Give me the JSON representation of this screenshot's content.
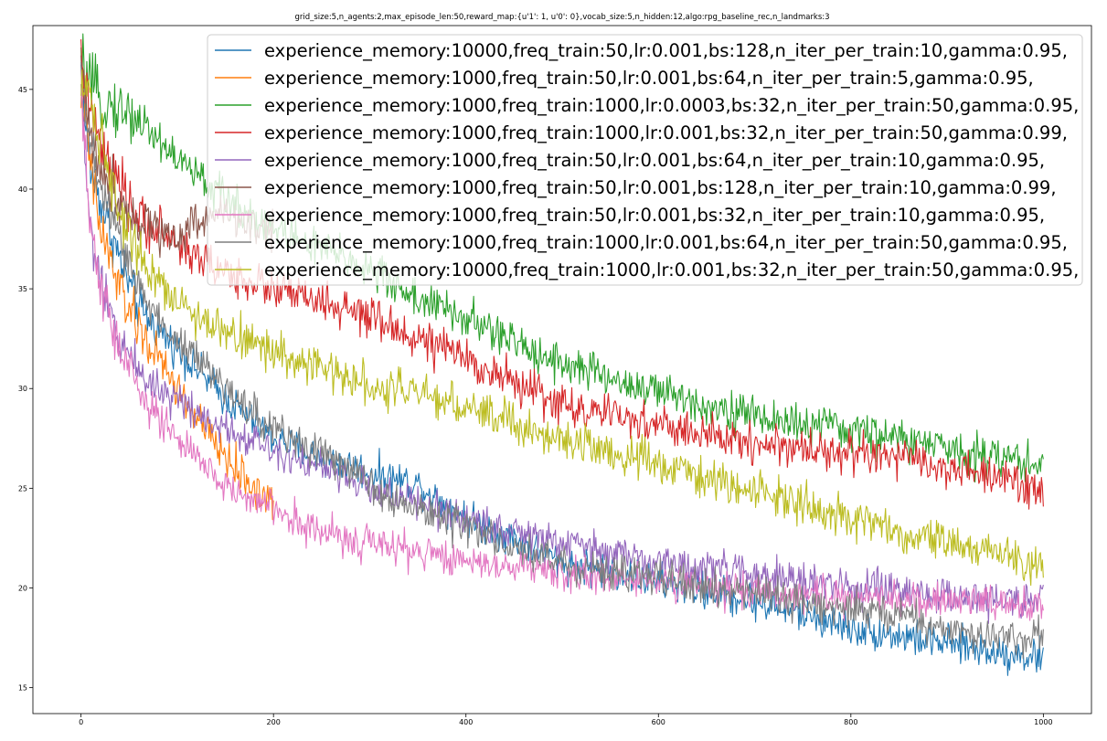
{
  "chart_data": {
    "type": "line",
    "title": "grid_size:5,n_agents:2,max_episode_len:50,reward_map:{u'1': 1, u'0': 0},vocab_size:5,n_hidden:12,algo:rpg_baseline_rec,n_landmarks:3",
    "xlabel": "",
    "ylabel": "",
    "xlim": [
      -50,
      1050
    ],
    "ylim": [
      13.7,
      48.2
    ],
    "xticks": [
      0,
      200,
      400,
      600,
      800,
      1000
    ],
    "yticks": [
      15,
      20,
      25,
      30,
      35,
      40,
      45
    ],
    "grid": false,
    "legend_position": "top-right",
    "series": [
      {
        "name": "experience_memory:10000,freq_train:50,lr:0.001,bs:128,n_iter_per_train:10,gamma:0.95,",
        "color": "#1f77b4",
        "x": [
          0,
          5,
          10,
          20,
          40,
          60,
          80,
          100,
          150,
          200,
          250,
          300,
          350,
          400,
          450,
          500,
          550,
          600,
          650,
          700,
          750,
          800,
          850,
          900,
          950,
          1000
        ],
        "y": [
          46,
          43,
          41,
          39.5,
          36.5,
          34,
          33,
          32,
          29.5,
          27.5,
          26.5,
          25.8,
          25.2,
          23.5,
          22.5,
          21.3,
          20.8,
          20.3,
          19.8,
          19.3,
          18.7,
          18,
          17.6,
          17.2,
          16.8,
          16.5
        ],
        "noise": 0.8
      },
      {
        "name": "experience_memory:1000,freq_train:50,lr:0.001,bs:64,n_iter_per_train:5,gamma:0.95,",
        "color": "#ff7f0e",
        "x": [
          0,
          10,
          20,
          40,
          60,
          80,
          100,
          120,
          140,
          160,
          180,
          200
        ],
        "y": [
          45,
          41,
          38,
          35,
          33,
          31.5,
          30,
          28.5,
          27.2,
          26,
          25,
          24.2
        ],
        "noise": 0.9
      },
      {
        "name": "experience_memory:1000,freq_train:1000,lr:0.0003,bs:32,n_iter_per_train:50,gamma:0.95,",
        "color": "#2ca02c",
        "x": [
          0,
          10,
          20,
          40,
          60,
          80,
          100,
          150,
          200,
          250,
          300,
          350,
          400,
          450,
          500,
          550,
          600,
          650,
          700,
          750,
          800,
          850,
          900,
          950,
          1000
        ],
        "y": [
          46,
          45,
          44.5,
          44,
          43.5,
          42.5,
          41.5,
          39.5,
          38,
          37,
          36,
          34.5,
          33.5,
          32.3,
          31.3,
          30.5,
          29.8,
          29.2,
          28.6,
          28.2,
          27.9,
          27.5,
          27,
          26.6,
          26.2
        ],
        "noise": 0.9
      },
      {
        "name": "experience_memory:1000,freq_train:1000,lr:0.001,bs:32,n_iter_per_train:50,gamma:0.99,",
        "color": "#d62728",
        "x": [
          0,
          10,
          20,
          40,
          60,
          80,
          100,
          150,
          200,
          250,
          300,
          350,
          400,
          450,
          500,
          550,
          600,
          650,
          700,
          750,
          800,
          850,
          900,
          950,
          1000
        ],
        "y": [
          46,
          44,
          42,
          40,
          38.5,
          38,
          37.2,
          35.8,
          35,
          34.3,
          33.5,
          32.5,
          31.5,
          30.3,
          29.2,
          28.6,
          28.2,
          27.6,
          27.3,
          27,
          26.8,
          26.5,
          26,
          25.5,
          25
        ],
        "noise": 0.9
      },
      {
        "name": "experience_memory:1000,freq_train:50,lr:0.001,bs:64,n_iter_per_train:10,gamma:0.95,",
        "color": "#9467bd",
        "x": [
          0,
          5,
          10,
          20,
          40,
          60,
          80,
          100,
          150,
          200,
          250,
          300,
          350,
          400,
          450,
          500,
          550,
          600,
          650,
          700,
          750,
          800,
          850,
          900,
          950,
          1000
        ],
        "y": [
          45,
          41,
          38,
          35,
          32.5,
          31,
          30,
          29.5,
          28,
          27,
          26,
          25,
          24.2,
          23.5,
          22.8,
          22.2,
          21.8,
          21.3,
          21,
          20.7,
          20.3,
          20,
          19.8,
          19.6,
          19.4,
          19.3
        ],
        "noise": 0.8
      },
      {
        "name": "experience_memory:1000,freq_train:50,lr:0.001,bs:128,n_iter_per_train:10,gamma:0.99,",
        "color": "#8c564b",
        "x": [
          0,
          10,
          20,
          40,
          60,
          80,
          100,
          120,
          140,
          160,
          180,
          200
        ],
        "y": [
          46,
          43,
          41,
          39.5,
          38.5,
          38,
          37.5,
          38.5,
          38.8,
          38.6,
          38.2,
          37.8
        ],
        "noise": 0.9
      },
      {
        "name": "experience_memory:1000,freq_train:50,lr:0.001,bs:32,n_iter_per_train:10,gamma:0.95,",
        "color": "#e377c2",
        "x": [
          0,
          5,
          10,
          20,
          40,
          60,
          80,
          100,
          130,
          160,
          200,
          250,
          300,
          350,
          400,
          450,
          500,
          550,
          600,
          650,
          700,
          750,
          800,
          850,
          900,
          950,
          1000
        ],
        "y": [
          45,
          41,
          38,
          35,
          32,
          30,
          28.5,
          27.5,
          26,
          24.8,
          24,
          22.8,
          22.2,
          21.8,
          21.4,
          21.1,
          20.8,
          20.5,
          20.2,
          20,
          19.8,
          19.6,
          19.5,
          19.4,
          19.3,
          19.2,
          19.2
        ],
        "noise": 0.8
      },
      {
        "name": "experience_memory:1000,freq_train:1000,lr:0.001,bs:64,n_iter_per_train:50,gamma:0.95,",
        "color": "#7f7f7f",
        "x": [
          0,
          10,
          20,
          40,
          60,
          80,
          100,
          150,
          200,
          250,
          300,
          350,
          400,
          450,
          500,
          550,
          600,
          650,
          700,
          750,
          800,
          850,
          900,
          950,
          1000
        ],
        "y": [
          45,
          42.5,
          40,
          37.5,
          35,
          33.5,
          32.5,
          30,
          28,
          26.8,
          25.2,
          24,
          23,
          22,
          21.2,
          20.8,
          20.5,
          20,
          19.6,
          19.3,
          19,
          18.5,
          18,
          17.5,
          17.5
        ],
        "noise": 0.8
      },
      {
        "name": "experience_memory:10000,freq_train:1000,lr:0.001,bs:32,n_iter_per_train:50,gamma:0.95,",
        "color": "#bcbd22",
        "x": [
          0,
          10,
          20,
          40,
          60,
          80,
          100,
          150,
          200,
          250,
          300,
          350,
          400,
          450,
          500,
          550,
          600,
          650,
          700,
          750,
          800,
          850,
          900,
          950,
          1000
        ],
        "y": [
          46,
          44.5,
          42.5,
          39,
          37,
          35.5,
          34.3,
          32.8,
          31.8,
          31,
          30.3,
          29.8,
          29,
          28.3,
          27.5,
          26.8,
          26.2,
          25.5,
          24.8,
          24.2,
          23.5,
          22.8,
          22.3,
          21.8,
          21.2
        ],
        "noise": 0.9
      }
    ]
  }
}
